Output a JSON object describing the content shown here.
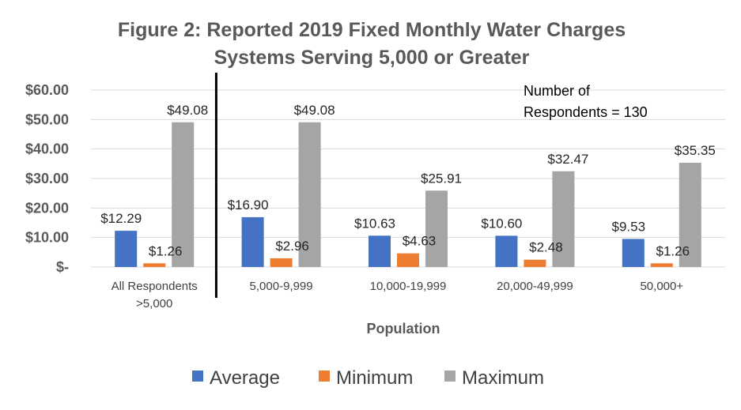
{
  "colors": {
    "average": "#4472C4",
    "minimum": "#ED7D31",
    "maximum": "#A5A5A5",
    "grid": "#D9D9D9",
    "divider": "#000000"
  },
  "chart_data": {
    "type": "bar",
    "title_line1": "Figure 2: Reported 2019 Fixed Monthly Water Charges",
    "title_line2": "Systems Serving 5,000 or Greater",
    "xlabel": "Population",
    "ylabel": "",
    "ylim": [
      0,
      60
    ],
    "yticks": [
      {
        "value": 0,
        "label": "$-"
      },
      {
        "value": 10,
        "label": "$10.00"
      },
      {
        "value": 20,
        "label": "$20.00"
      },
      {
        "value": 30,
        "label": "$30.00"
      },
      {
        "value": 40,
        "label": "$40.00"
      },
      {
        "value": 50,
        "label": "$50.00"
      },
      {
        "value": 60,
        "label": "$60.00"
      }
    ],
    "categories": [
      [
        "All Respondents",
        ">5,000"
      ],
      [
        "5,000-9,999"
      ],
      [
        "10,000-19,999"
      ],
      [
        "20,000-49,999"
      ],
      [
        "50,000+"
      ]
    ],
    "series": [
      {
        "name": "Average",
        "color_key": "average",
        "values": [
          12.29,
          16.9,
          10.63,
          10.6,
          9.53
        ],
        "labels": [
          "$12.29",
          "$16.90",
          "$10.63",
          "$10.60",
          "$9.53"
        ]
      },
      {
        "name": "Minimum",
        "color_key": "minimum",
        "values": [
          1.26,
          2.96,
          4.63,
          2.48,
          1.26
        ],
        "labels": [
          "$1.26",
          "$2.96",
          "$4.63",
          "$2.48",
          "$1.26"
        ]
      },
      {
        "name": "Maximum",
        "color_key": "maximum",
        "values": [
          49.08,
          49.08,
          25.91,
          32.47,
          35.35
        ],
        "labels": [
          "$49.08",
          "$49.08",
          "$25.91",
          "$32.47",
          "$35.35"
        ]
      }
    ],
    "annotation": [
      "Number of",
      "Respondents = 130"
    ],
    "grid": true,
    "legend_position": "bottom",
    "divider_after_category": 0
  }
}
